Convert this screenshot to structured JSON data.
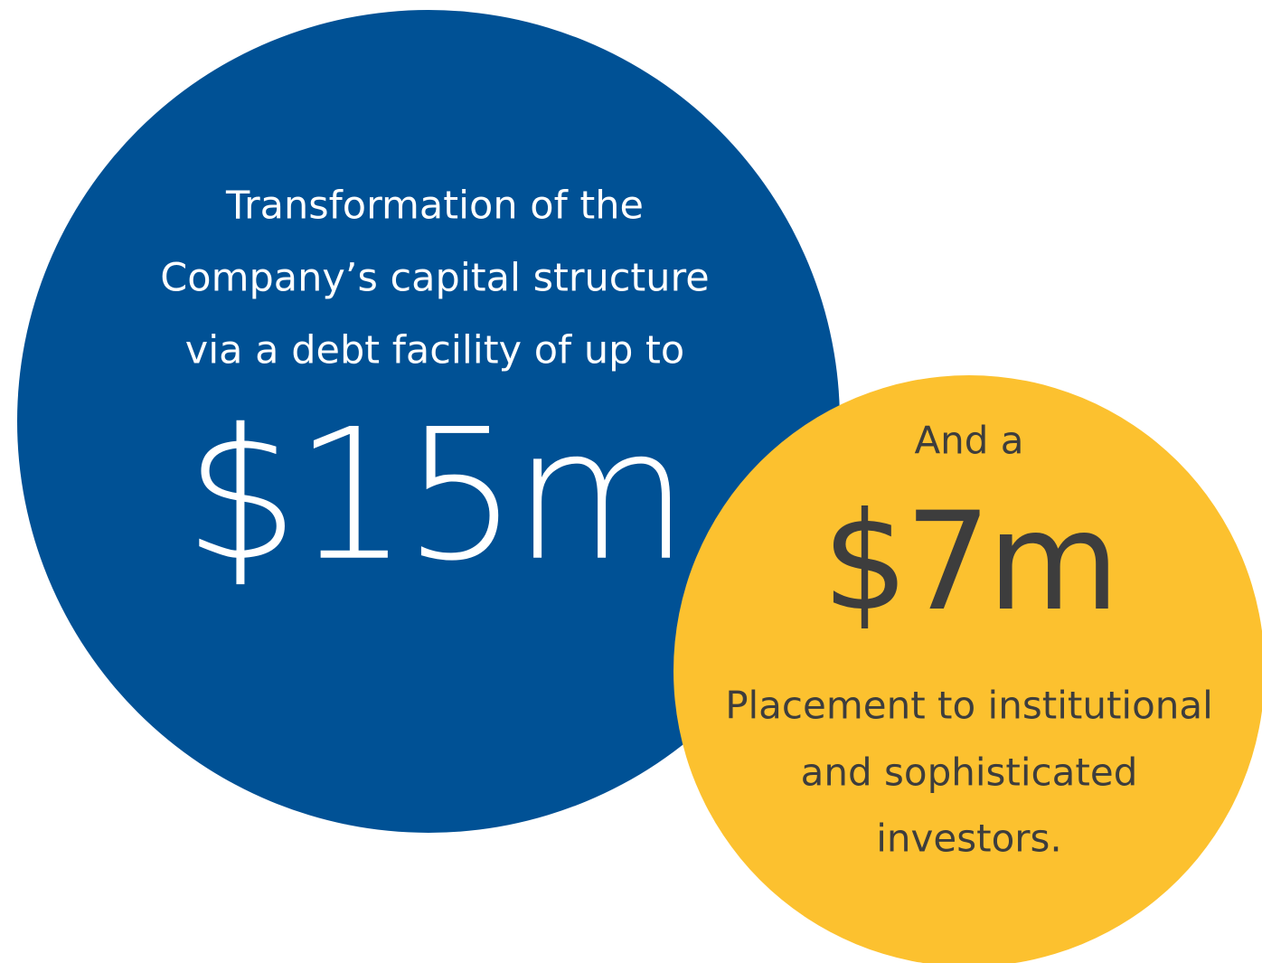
{
  "circles": [
    {
      "lines": [
        "Transformation of the",
        "Company’s capital structure",
        "via a debt facility of up to"
      ],
      "amount": "$15m"
    },
    {
      "intro": "And a",
      "amount": "$7m",
      "lines": [
        "Placement to institutional",
        "and sophisticated",
        "investors."
      ]
    }
  ]
}
